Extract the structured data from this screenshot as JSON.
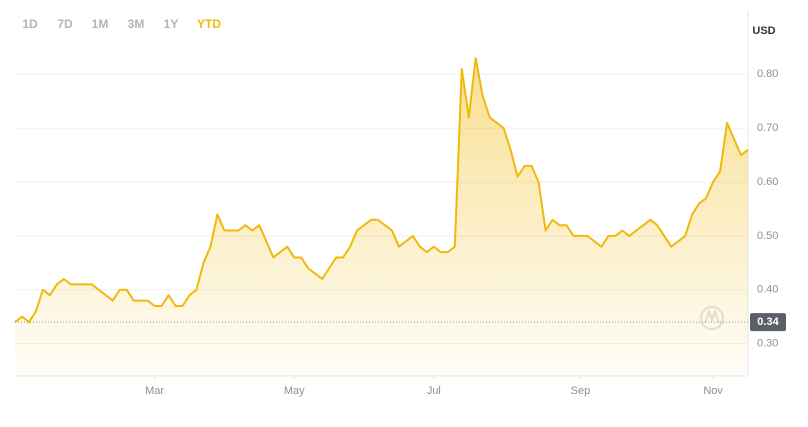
{
  "chart_data": {
    "type": "line",
    "timeframes": [
      "1D",
      "7D",
      "1M",
      "3M",
      "1Y",
      "YTD"
    ],
    "selected_timeframe": "YTD",
    "y_axis_label": "USD",
    "categories": [
      null,
      null,
      null,
      null,
      null,
      null,
      null,
      null,
      null,
      null,
      null,
      null,
      null,
      null,
      null,
      null,
      null,
      null,
      null,
      null,
      "Mar",
      null,
      null,
      null,
      null,
      null,
      null,
      null,
      null,
      null,
      null,
      null,
      null,
      null,
      null,
      null,
      null,
      null,
      null,
      null,
      "May",
      null,
      null,
      null,
      null,
      null,
      null,
      null,
      null,
      null,
      null,
      null,
      null,
      null,
      null,
      null,
      null,
      null,
      null,
      null,
      "Jul",
      null,
      null,
      null,
      null,
      null,
      null,
      null,
      null,
      null,
      null,
      null,
      null,
      null,
      null,
      null,
      null,
      null,
      null,
      null,
      null,
      "Sep",
      null,
      null,
      null,
      null,
      null,
      null,
      null,
      null,
      null,
      null,
      null,
      null,
      null,
      null,
      null,
      null,
      null,
      null,
      "Nov",
      null,
      null,
      null,
      null,
      null
    ],
    "values": [
      0.34,
      0.35,
      0.34,
      0.36,
      0.4,
      0.39,
      0.41,
      0.42,
      0.41,
      0.41,
      0.41,
      0.41,
      0.4,
      0.39,
      0.38,
      0.4,
      0.4,
      0.38,
      0.38,
      0.38,
      0.37,
      0.37,
      0.39,
      0.37,
      0.37,
      0.39,
      0.4,
      0.45,
      0.48,
      0.54,
      0.51,
      0.51,
      0.51,
      0.52,
      0.51,
      0.52,
      0.49,
      0.46,
      0.47,
      0.48,
      0.46,
      0.46,
      0.44,
      0.43,
      0.42,
      0.44,
      0.46,
      0.46,
      0.48,
      0.51,
      0.52,
      0.53,
      0.53,
      0.52,
      0.51,
      0.48,
      0.49,
      0.5,
      0.48,
      0.47,
      0.48,
      0.47,
      0.47,
      0.48,
      0.81,
      0.72,
      0.83,
      0.76,
      0.72,
      0.71,
      0.7,
      0.66,
      0.61,
      0.63,
      0.63,
      0.6,
      0.51,
      0.53,
      0.52,
      0.52,
      0.5,
      0.5,
      0.5,
      0.49,
      0.48,
      0.5,
      0.5,
      0.51,
      0.5,
      0.51,
      0.52,
      0.53,
      0.52,
      0.5,
      0.48,
      0.49,
      0.5,
      0.54,
      0.56,
      0.57,
      0.6,
      0.62,
      0.71,
      0.68,
      0.65,
      0.66
    ],
    "color": "#f0b90b",
    "ylim": [
      0.24,
      0.86
    ],
    "yticks": [
      {
        "value": 0.3,
        "label": "0.30"
      },
      {
        "value": 0.4,
        "label": "0.40"
      },
      {
        "value": 0.5,
        "label": "0.50"
      },
      {
        "value": 0.6,
        "label": "0.60"
      },
      {
        "value": 0.7,
        "label": "0.70"
      },
      {
        "value": 0.8,
        "label": "0.80"
      }
    ],
    "grid": true,
    "price_line": {
      "value": 0.34,
      "label": "0.34"
    }
  }
}
